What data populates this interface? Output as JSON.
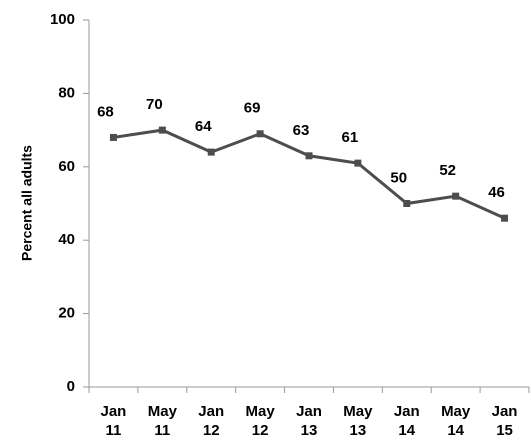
{
  "chart_data": {
    "type": "line",
    "y_label": "Percent all adults",
    "categories": [
      "Jan 11",
      "May 11",
      "Jan 12",
      "May 12",
      "Jan 13",
      "May 13",
      "Jan 14",
      "May 14",
      "Jan 15"
    ],
    "series": [
      {
        "name": "Percent all adults",
        "color": "#4d4d4d",
        "values": [
          68,
          70,
          64,
          69,
          63,
          61,
          50,
          52,
          46
        ]
      }
    ],
    "ylim": [
      0,
      100
    ],
    "yticks": [
      0,
      20,
      40,
      60,
      80,
      100
    ],
    "grid": false
  }
}
